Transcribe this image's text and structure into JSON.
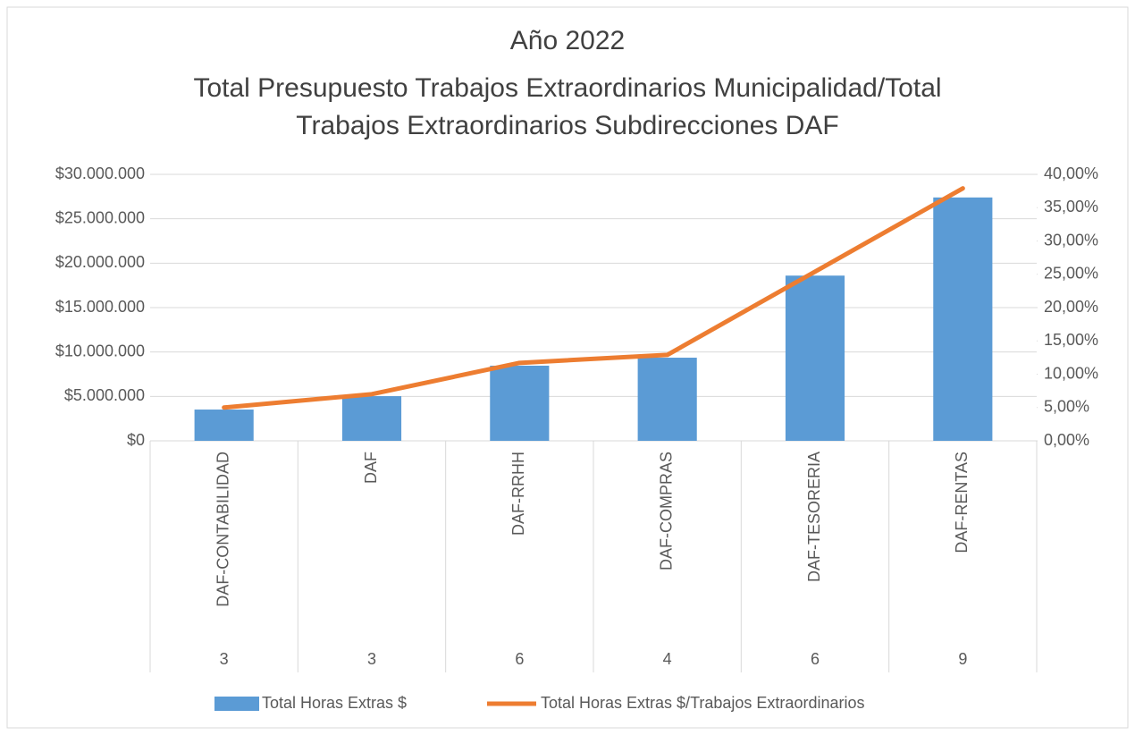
{
  "chart_data": {
    "type": "bar-line",
    "title": [
      "Año 2022",
      "Total Presupuesto Trabajos Extraordinarios Municipalidad/Total",
      "Trabajos Extraordinarios Subdirecciones DAF"
    ],
    "categories": [
      "DAF-CONTABILIDAD",
      "DAF",
      "DAF-RRHH",
      "DAF-COMPRAS",
      "DAF-TESORERIA",
      "DAF-RENTAS"
    ],
    "category_groups": [
      "3",
      "3",
      "6",
      "4",
      "6",
      "9"
    ],
    "series": [
      {
        "name": "Total Horas Extras $",
        "type": "bar",
        "color": "#5b9bd5",
        "values": [
          3520000,
          5030000,
          8460000,
          9360000,
          18600000,
          27400000
        ]
      },
      {
        "name": "Total Horas Extras $/Trabajos Extraordinarios",
        "type": "line",
        "axis": "y2",
        "color": "#ed7d31",
        "values": [
          5,
          7,
          11.7,
          12.9,
          25.4,
          37.9
        ]
      }
    ],
    "ylim": [
      0,
      30000000
    ],
    "yticks": [
      {
        "value": 0,
        "label": "$0"
      },
      {
        "value": 5000000,
        "label": "$5.000.000"
      },
      {
        "value": 10000000,
        "label": "$10.000.000"
      },
      {
        "value": 15000000,
        "label": "$15.000.000"
      },
      {
        "value": 20000000,
        "label": "$20.000.000"
      },
      {
        "value": 25000000,
        "label": "$25.000.000"
      },
      {
        "value": 30000000,
        "label": "$30.000.000"
      }
    ],
    "y2lim": [
      0,
      40
    ],
    "y2ticks": [
      {
        "value": 0,
        "label": "0,00%"
      },
      {
        "value": 5,
        "label": "5,00%"
      },
      {
        "value": 10,
        "label": "10,00%"
      },
      {
        "value": 15,
        "label": "15,00%"
      },
      {
        "value": 20,
        "label": "20,00%"
      },
      {
        "value": 25,
        "label": "25,00%"
      },
      {
        "value": 30,
        "label": "30,00%"
      },
      {
        "value": 35,
        "label": "35,00%"
      },
      {
        "value": 40,
        "label": "40,00%"
      }
    ],
    "grid": true,
    "legend": "bottom"
  }
}
